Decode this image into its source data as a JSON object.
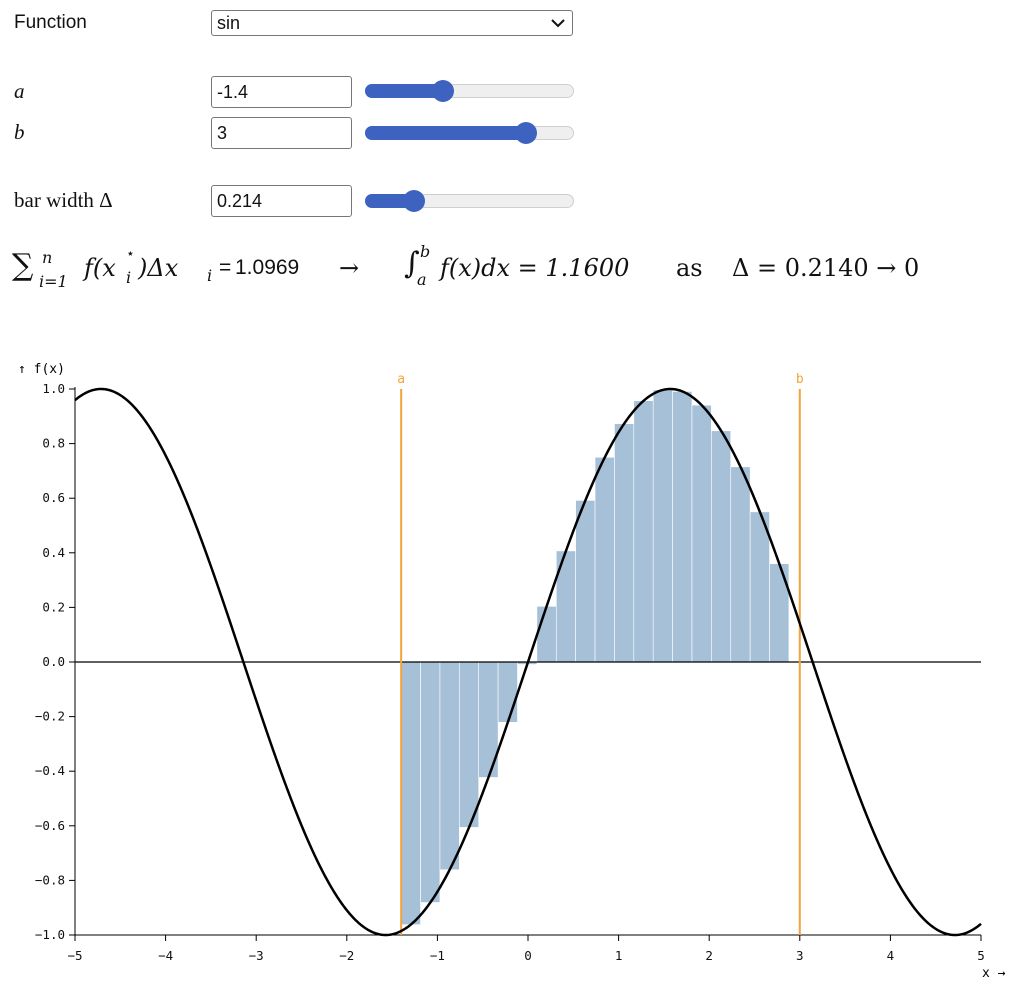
{
  "controls": {
    "function_label": "Function",
    "function_selected": "sin",
    "a_label": "a",
    "a_value": "-1.4",
    "a_slider": {
      "min": -5,
      "max": 5,
      "value": -1.4
    },
    "b_label": "b",
    "b_value": "3",
    "b_slider": {
      "min": -5,
      "max": 5,
      "value": 3
    },
    "width_label": "bar width Δ",
    "width_value": "0.214",
    "width_slider": {
      "min": 0.01,
      "max": 1,
      "value": 0.214
    }
  },
  "formula": {
    "sum_symbol": "∑",
    "sum_upper": "n",
    "sum_lower": "i=1",
    "sum_body": "f(x",
    "sum_body_sub": "i",
    "sum_body_sup": "⋆",
    "sum_body_tail": ")Δx",
    "sum_body_tail_sub": "i",
    "equals": "=",
    "riemann_sum": "1.0969",
    "arrow": "→",
    "int_symbol": "∫",
    "int_upper": "b",
    "int_lower": "a",
    "int_body": "f(x)dx = 1.1600",
    "as_text": "as",
    "delta_text": "Δ = 0.2140 → 0"
  },
  "chart_data": {
    "type": "line",
    "function": "sin",
    "title": "",
    "xlabel": "x →",
    "ylabel": "↑ f(x)",
    "xlim": [
      -5,
      5
    ],
    "ylim": [
      -1,
      1
    ],
    "x_ticks": [
      -5,
      -4,
      -3,
      -2,
      -1,
      0,
      1,
      2,
      3,
      4,
      5
    ],
    "x_tick_labels": [
      "−5",
      "−4",
      "−3",
      "−2",
      "−1",
      "0",
      "1",
      "2",
      "3",
      "4",
      "5"
    ],
    "y_ticks": [
      1.0,
      0.8,
      0.6,
      0.4,
      0.2,
      0.0,
      -0.2,
      -0.4,
      -0.6,
      -0.8,
      -1.0
    ],
    "y_tick_labels": [
      "1.0",
      "0.8",
      "0.6",
      "0.4",
      "0.2",
      "0.0",
      "−0.2",
      "−0.4",
      "−0.6",
      "−0.8",
      "−1.0"
    ],
    "a": -1.4,
    "b": 3,
    "a_label": "a",
    "b_label": "b",
    "bar_width": 0.214,
    "bar_midpoints": [
      -1.293,
      -1.079,
      -0.865,
      -0.651,
      -0.437,
      -0.223,
      -0.009,
      0.205,
      0.419,
      0.633,
      0.847,
      1.061,
      1.275,
      1.489,
      1.703,
      1.917,
      2.131,
      2.345,
      2.559,
      2.773
    ],
    "bar_heights": [
      -0.962,
      -0.881,
      -0.761,
      -0.606,
      -0.423,
      -0.221,
      -0.009,
      0.204,
      0.407,
      0.592,
      0.75,
      0.873,
      0.957,
      0.997,
      0.991,
      0.941,
      0.847,
      0.715,
      0.55,
      0.36
    ],
    "colors": {
      "curve": "#000000",
      "bars": "#a6c0d8",
      "bar_edge": "#ffffff",
      "bounds": "#f2a43a",
      "axis": "#000000"
    }
  }
}
